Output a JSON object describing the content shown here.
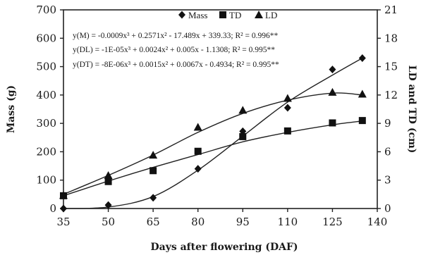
{
  "chart_data": {
    "type": "scatter",
    "xlabel": "Days after flowering (DAF)",
    "ylabel": "Mass (g)",
    "y2label": "LD and TD (cm)",
    "xlim": [
      35,
      140
    ],
    "xticks": [
      35,
      50,
      65,
      80,
      95,
      110,
      125,
      140
    ],
    "ylim": [
      0,
      700
    ],
    "yticks": [
      0,
      100,
      200,
      300,
      400,
      500,
      600,
      700
    ],
    "y2lim": [
      0,
      21
    ],
    "y2ticks": [
      0,
      3,
      6,
      9,
      12,
      15,
      18,
      21
    ],
    "grid": false,
    "legend_position": "top-center",
    "series": [
      {
        "name": "Mass",
        "marker": "diamond",
        "axis": "left",
        "x": [
          35,
          50,
          65,
          80,
          95,
          110,
          125,
          135
        ],
        "values": [
          0,
          12,
          38,
          140,
          272,
          355,
          490,
          530
        ],
        "fit": {
          "a": -0.0009,
          "b": 0.2571,
          "c": -17.489,
          "d": 339.33
        }
      },
      {
        "name": "TD",
        "marker": "square",
        "axis": "right",
        "x": [
          35,
          50,
          65,
          80,
          95,
          110,
          125,
          135
        ],
        "values": [
          1.35,
          2.85,
          4.0,
          6.05,
          7.6,
          8.2,
          9.05,
          9.3
        ],
        "fit": {
          "a": -8e-06,
          "b": 0.0015,
          "c": 0.0067,
          "d": -0.4934
        }
      },
      {
        "name": "LD",
        "marker": "triangle",
        "axis": "right",
        "x": [
          35,
          50,
          65,
          80,
          95,
          110,
          125,
          135
        ],
        "values": [
          1.4,
          3.5,
          5.65,
          8.6,
          10.4,
          11.65,
          12.3,
          12.1
        ],
        "fit": {
          "a": -1e-05,
          "b": 0.0024,
          "c": 0.005,
          "d": -1.1308
        }
      }
    ],
    "equations": [
      "y(M) = -0.0009x³ + 0.2571x² - 17.489x + 339.33; R² = 0.996**",
      "y(DL) = -1E-05x³ + 0.0024x² + 0.005x - 1.1308; R² = 0.995**",
      "y(DT) = -8E-06x³ + 0.0015x² + 0.0067x - 0.4934; R² = 0.995**"
    ]
  }
}
